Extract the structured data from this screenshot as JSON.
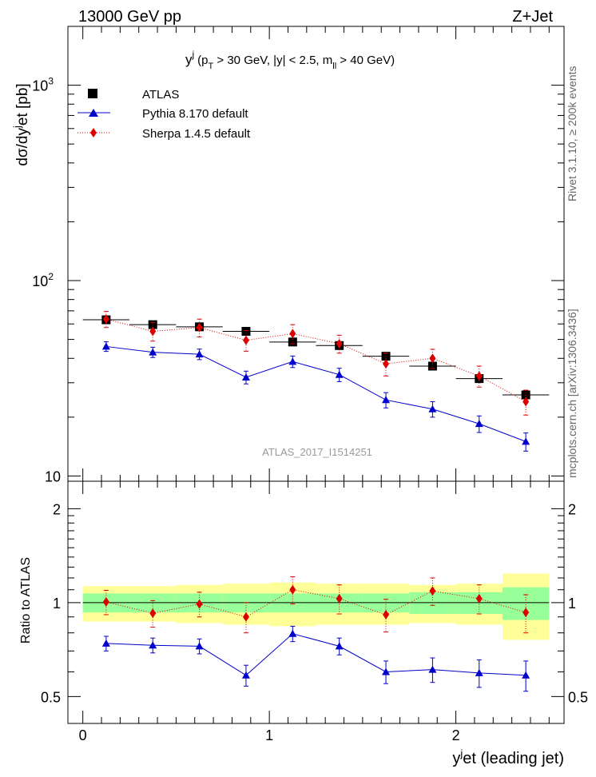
{
  "header": {
    "left": "13000 GeV pp",
    "right": "Z+Jet"
  },
  "side_labels": {
    "rivet": "Rivet 3.1.10, ≥ 200k events",
    "mcplots": "mcplots.cern.ch [arXiv:1306.3436]"
  },
  "watermark": "ATLAS_2017_I1514251",
  "chart_data": [
    {
      "type": "scatter",
      "panel": "main",
      "title": {
        "var": "y",
        "var_sup": "j",
        "pre": "(p",
        "pt_sub": "T",
        "mid": " > 30 GeV, |y| < 2.5, m",
        "m_sub": "ll",
        "post": " > 40 GeV)"
      },
      "ylabel": {
        "a": "dσ/dy",
        "a_sup": "j",
        "b": "et [pb]"
      },
      "yscale": "log",
      "ylim": [
        9.4,
        2000
      ],
      "xlim": [
        -0.08,
        2.58
      ],
      "ytick_labels": [
        {
          "value": 10,
          "label": "10"
        },
        {
          "value": 100,
          "label": "10",
          "sup": "2"
        },
        {
          "value": 1000,
          "label": "10",
          "sup": "3"
        }
      ],
      "legend_position": "top-left",
      "x": [
        0.125,
        0.375,
        0.625,
        0.875,
        1.125,
        1.375,
        1.625,
        1.875,
        2.125,
        2.375
      ],
      "x_halfwidth": 0.125,
      "series": [
        {
          "name": "ATLAS",
          "marker": "square",
          "color": "#000000",
          "values": [
            63,
            59.5,
            58,
            55,
            48.5,
            46.5,
            41,
            36.5,
            31.5,
            26
          ],
          "errors": [
            2,
            2,
            2,
            2,
            1.8,
            1.8,
            1.6,
            1.5,
            1.3,
            1.2
          ]
        },
        {
          "name": "Pythia 8.170 default",
          "marker": "triangle",
          "color": "#0000cc",
          "line": "solid",
          "values": [
            46,
            43,
            42,
            32,
            38.5,
            33,
            24.5,
            22,
            18.5,
            15
          ],
          "errors": [
            2.6,
            2.6,
            2.6,
            2.4,
            2.6,
            2.6,
            2.2,
            2.0,
            1.8,
            1.6
          ]
        },
        {
          "name": "Sherpa 1.4.5 default",
          "marker": "diamond",
          "color": "#dd0000",
          "line": "dotted",
          "values": [
            63.5,
            55,
            57.5,
            49.5,
            53.5,
            47.5,
            37.5,
            40,
            32.5,
            24
          ],
          "errors": [
            6,
            6,
            6,
            6,
            6,
            5,
            5,
            4.5,
            4,
            3.5
          ]
        }
      ]
    },
    {
      "type": "scatter",
      "panel": "ratio",
      "ylabel": "Ratio to ATLAS",
      "yscale": "log",
      "ylim": [
        0.41,
        2.45
      ],
      "xlim": [
        -0.08,
        2.58
      ],
      "xlabel": {
        "a": "y",
        "sup": "j",
        "b": "et (leading jet)"
      },
      "ytick_labels": [
        {
          "value": 0.5,
          "label": "0.5"
        },
        {
          "value": 1,
          "label": "1"
        },
        {
          "value": 2,
          "label": "2"
        }
      ],
      "xtick_labels": [
        {
          "value": 0,
          "label": "0"
        },
        {
          "value": 1,
          "label": "1"
        },
        {
          "value": 2,
          "label": "2"
        }
      ],
      "band_edges": [
        0,
        0.25,
        0.5,
        0.75,
        1.0,
        1.25,
        1.5,
        1.75,
        2.0,
        2.25,
        2.5
      ],
      "band_stat": [
        0.07,
        0.07,
        0.07,
        0.07,
        0.07,
        0.07,
        0.07,
        0.08,
        0.08,
        0.12
      ],
      "band_total": [
        0.13,
        0.13,
        0.14,
        0.15,
        0.16,
        0.15,
        0.15,
        0.14,
        0.15,
        0.24
      ],
      "x": [
        0.125,
        0.375,
        0.625,
        0.875,
        1.125,
        1.375,
        1.625,
        1.875,
        2.125,
        2.375
      ],
      "series": [
        {
          "name": "Pythia 8.170 default",
          "marker": "triangle",
          "color": "#0000cc",
          "line": "solid",
          "values": [
            0.74,
            0.73,
            0.725,
            0.585,
            0.795,
            0.725,
            0.6,
            0.61,
            0.595,
            0.585
          ],
          "errors": [
            0.04,
            0.04,
            0.04,
            0.045,
            0.045,
            0.045,
            0.05,
            0.055,
            0.06,
            0.065
          ]
        },
        {
          "name": "Sherpa 1.4.5 default",
          "marker": "diamond",
          "color": "#dd0000",
          "line": "dotted",
          "values": [
            1.005,
            0.925,
            0.99,
            0.9,
            1.1,
            1.03,
            0.915,
            1.09,
            1.03,
            0.93
          ],
          "errors": [
            0.09,
            0.09,
            0.09,
            0.1,
            0.11,
            0.11,
            0.11,
            0.11,
            0.11,
            0.13
          ]
        }
      ]
    }
  ]
}
